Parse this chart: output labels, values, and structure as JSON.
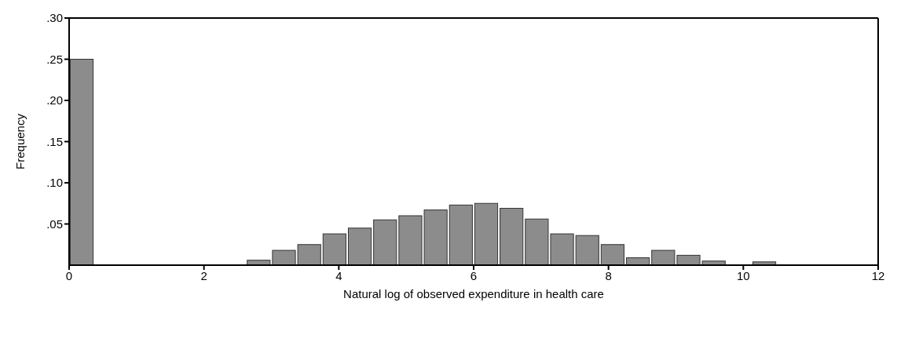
{
  "chart_data": {
    "type": "histogram",
    "xlabel": "Natural log of observed expenditure in health care",
    "ylabel": "Frequency",
    "bins": [
      0,
      0.375,
      0.75,
      1.125,
      1.5,
      1.875,
      2.25,
      2.625,
      3,
      3.375,
      3.75,
      4.125,
      4.5,
      4.875,
      5.25,
      5.625,
      6,
      6.375,
      6.75,
      7.125,
      7.5,
      7.875,
      8.25,
      8.625,
      9,
      9.375,
      9.75,
      10.125,
      10.5
    ],
    "values": [
      0.25,
      0,
      0,
      0,
      0,
      0,
      0,
      0.006,
      0.018,
      0.025,
      0.038,
      0.045,
      0.055,
      0.06,
      0.067,
      0.073,
      0.075,
      0.069,
      0.056,
      0.038,
      0.036,
      0.025,
      0.009,
      0.018,
      0.012,
      0.005,
      0,
      0.004
    ],
    "color": "#8c8c8c",
    "xlim": [
      0,
      12
    ],
    "xticks": [
      0,
      2,
      4,
      6,
      8,
      10,
      12
    ],
    "ylim": [
      0,
      0.3
    ],
    "yticks": [
      {
        "value": 0.05,
        "label": ".05"
      },
      {
        "value": 0.1,
        "label": ".10"
      },
      {
        "value": 0.15,
        "label": ".15"
      },
      {
        "value": 0.2,
        "label": ".20"
      },
      {
        "value": 0.25,
        "label": ".25"
      },
      {
        "value": 0.3,
        "label": ".30"
      }
    ],
    "grid": false
  }
}
